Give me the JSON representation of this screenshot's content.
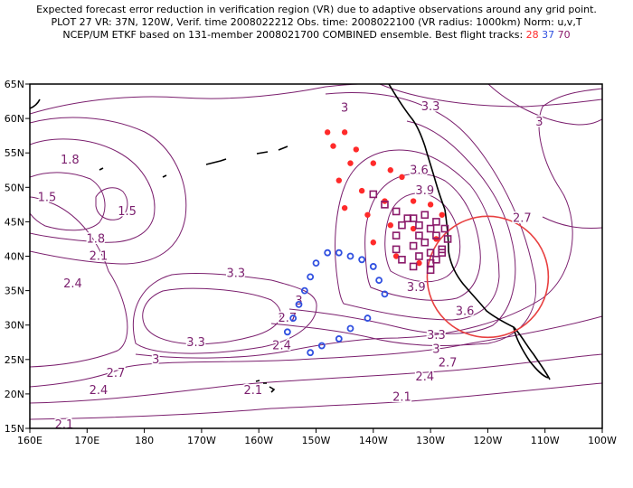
{
  "header": {
    "line1": "Expected forecast error reduction in verification region (VR) due to adaptive observations around any grid point.",
    "line2": "PLOT 27 VR: 37N, 120W, Verif. time 2008022212 Obs. time: 2008022100 (VR radius: 1000km) Norm: u,v,T",
    "line3_prefix": "NCEP/UM ETKF based on 131-member 2008021700 COMBINED ensemble.  Best flight tracks:",
    "track_a": "28",
    "track_b": "37",
    "track_c": "70"
  },
  "colors": {
    "contour": "#7b1f6e",
    "track_28": "#ff2a2a",
    "track_37": "#3050e0",
    "track_70": "#8a1a6a",
    "verification_circle": "#e84040"
  },
  "map": {
    "lon_labels": [
      "160E",
      "170E",
      "180",
      "170W",
      "160W",
      "150W",
      "140W",
      "130W",
      "120W",
      "110W",
      "100W"
    ],
    "lat_labels": [
      "65N",
      "60N",
      "55N",
      "50N",
      "45N",
      "40N",
      "35N",
      "30N",
      "25N",
      "20N",
      "15N"
    ],
    "contour_labels": [
      {
        "text": "3",
        "lon": -145,
        "lat": 61.5
      },
      {
        "text": "3.3",
        "lon": -130,
        "lat": 61.7
      },
      {
        "text": "3",
        "lon": -111,
        "lat": 59.5
      },
      {
        "text": "1.8",
        "lon": 167,
        "lat": 54
      },
      {
        "text": "3.6",
        "lon": -132,
        "lat": 52.5
      },
      {
        "text": "1.5",
        "lon": 163,
        "lat": 48.5
      },
      {
        "text": "1.5",
        "lon": 177,
        "lat": 46.5
      },
      {
        "text": "3.9",
        "lon": -131,
        "lat": 49.5
      },
      {
        "text": "2.7",
        "lon": -114,
        "lat": 45.5
      },
      {
        "text": "1.8",
        "lon": 171.5,
        "lat": 42.5
      },
      {
        "text": "2.1",
        "lon": 172,
        "lat": 40
      },
      {
        "text": "2.4",
        "lon": 167.5,
        "lat": 36
      },
      {
        "text": "3.3",
        "lon": -164,
        "lat": 37.5
      },
      {
        "text": "3.9",
        "lon": -132.5,
        "lat": 35.5
      },
      {
        "text": "3",
        "lon": -153,
        "lat": 33.5
      },
      {
        "text": "3.6",
        "lon": -124,
        "lat": 32
      },
      {
        "text": "2.7",
        "lon": -155,
        "lat": 31
      },
      {
        "text": "3.3",
        "lon": -129,
        "lat": 28.5
      },
      {
        "text": "3.3",
        "lon": -171,
        "lat": 27.5
      },
      {
        "text": "2.4",
        "lon": -156,
        "lat": 27
      },
      {
        "text": "3",
        "lon": -129,
        "lat": 26.5
      },
      {
        "text": "3",
        "lon": -178,
        "lat": 25
      },
      {
        "text": "2.7",
        "lon": -127,
        "lat": 24.5
      },
      {
        "text": "2.7",
        "lon": -185,
        "lat": 23
      },
      {
        "text": "2.4",
        "lon": -131,
        "lat": 22.5
      },
      {
        "text": "2.4",
        "lon": -188,
        "lat": 20.5
      },
      {
        "text": "2.1",
        "lon": -161,
        "lat": 20.5
      },
      {
        "text": "2.1",
        "lon": -135,
        "lat": 19.5
      },
      {
        "text": "2.1",
        "lon": 166,
        "lat": 15.5
      }
    ],
    "track_28": [
      [
        -148,
        58
      ],
      [
        -145,
        58
      ],
      [
        -143,
        55.5
      ],
      [
        -147,
        56
      ],
      [
        -144,
        53.5
      ],
      [
        -140,
        53.5
      ],
      [
        -137,
        52.5
      ],
      [
        -135,
        51.5
      ],
      [
        -146,
        51
      ],
      [
        -142,
        49.5
      ],
      [
        -138,
        48
      ],
      [
        -133,
        48
      ],
      [
        -130,
        47.5
      ],
      [
        -128,
        46
      ],
      [
        -145,
        47
      ],
      [
        -141,
        46
      ],
      [
        -137,
        44.5
      ],
      [
        -133,
        44
      ],
      [
        -129,
        42.5
      ],
      [
        -140,
        42
      ],
      [
        -136,
        40
      ],
      [
        -132,
        39
      ]
    ],
    "track_37": [
      [
        -148,
        40.5
      ],
      [
        -146,
        40.5
      ],
      [
        -144,
        40
      ],
      [
        -142,
        39.5
      ],
      [
        -140,
        38.5
      ],
      [
        -150,
        39
      ],
      [
        -151,
        37
      ],
      [
        -152,
        35
      ],
      [
        -139,
        36.5
      ],
      [
        -138,
        34.5
      ],
      [
        -153,
        33
      ],
      [
        -154,
        31
      ],
      [
        -141,
        31
      ],
      [
        -144,
        29.5
      ],
      [
        -146,
        28
      ],
      [
        -155,
        29
      ],
      [
        -149,
        27
      ],
      [
        -151,
        26
      ]
    ],
    "track_70": [
      [
        -140,
        49
      ],
      [
        -138,
        47.5
      ],
      [
        -136,
        46.5
      ],
      [
        -134,
        45.5
      ],
      [
        -132,
        44.5
      ],
      [
        -129,
        43
      ],
      [
        -128,
        41
      ],
      [
        -129,
        39.5
      ],
      [
        -130,
        38
      ],
      [
        -133,
        38.5
      ],
      [
        -135,
        39.5
      ],
      [
        -136,
        41
      ],
      [
        -136,
        43
      ],
      [
        -135,
        44.5
      ],
      [
        -133,
        45.5
      ],
      [
        -131,
        46
      ],
      [
        -129,
        45
      ],
      [
        -127.5,
        44
      ],
      [
        -127,
        42.5
      ],
      [
        -128,
        40.5
      ],
      [
        -130,
        39
      ],
      [
        -132,
        40
      ],
      [
        -133,
        41.5
      ],
      [
        -132,
        43
      ],
      [
        -130,
        44
      ],
      [
        -131,
        42
      ],
      [
        -130,
        40.5
      ]
    ],
    "verification_region": {
      "lon": -120,
      "lat": 37
    }
  }
}
